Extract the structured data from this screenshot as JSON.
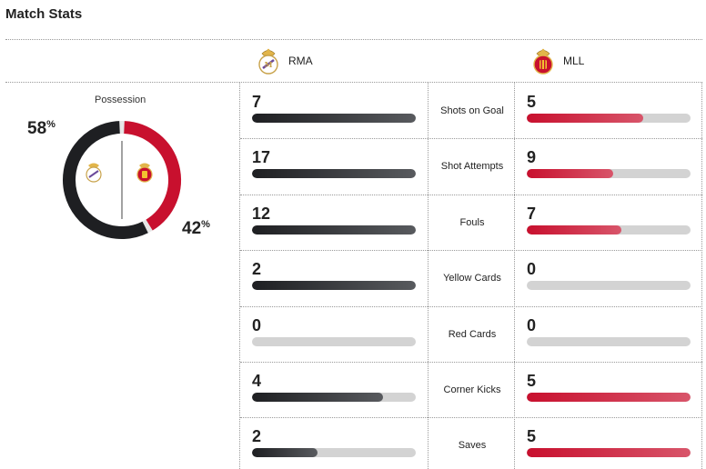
{
  "header": {
    "title": "Match Stats"
  },
  "teams": {
    "home": {
      "abbr": "RMA",
      "crest_icon": "real-madrid-crest-icon",
      "color": "#1e1f22"
    },
    "away": {
      "abbr": "MLL",
      "crest_icon": "mallorca-crest-icon",
      "color": "#c8102e"
    }
  },
  "possession": {
    "label": "Possession",
    "home": {
      "value": 58,
      "text": "58"
    },
    "away": {
      "value": 42,
      "text": "42"
    },
    "unit": "%"
  },
  "stats": [
    {
      "label": "Shots on Goal",
      "home": {
        "value": 7,
        "text": "7",
        "fill": 1.0
      },
      "away": {
        "value": 5,
        "text": "5",
        "fill": 0.71
      }
    },
    {
      "label": "Shot Attempts",
      "home": {
        "value": 17,
        "text": "17",
        "fill": 1.0
      },
      "away": {
        "value": 9,
        "text": "9",
        "fill": 0.53
      }
    },
    {
      "label": "Fouls",
      "home": {
        "value": 12,
        "text": "12",
        "fill": 1.0
      },
      "away": {
        "value": 7,
        "text": "7",
        "fill": 0.58
      }
    },
    {
      "label": "Yellow Cards",
      "home": {
        "value": 2,
        "text": "2",
        "fill": 1.0
      },
      "away": {
        "value": 0,
        "text": "0",
        "fill": 0
      }
    },
    {
      "label": "Red Cards",
      "home": {
        "value": 0,
        "text": "0",
        "fill": 0
      },
      "away": {
        "value": 0,
        "text": "0",
        "fill": 0
      }
    },
    {
      "label": "Corner Kicks",
      "home": {
        "value": 4,
        "text": "4",
        "fill": 0.8
      },
      "away": {
        "value": 5,
        "text": "5",
        "fill": 1.0
      }
    },
    {
      "label": "Saves",
      "home": {
        "value": 2,
        "text": "2",
        "fill": 0.4
      },
      "away": {
        "value": 5,
        "text": "5",
        "fill": 1.0
      }
    }
  ]
}
